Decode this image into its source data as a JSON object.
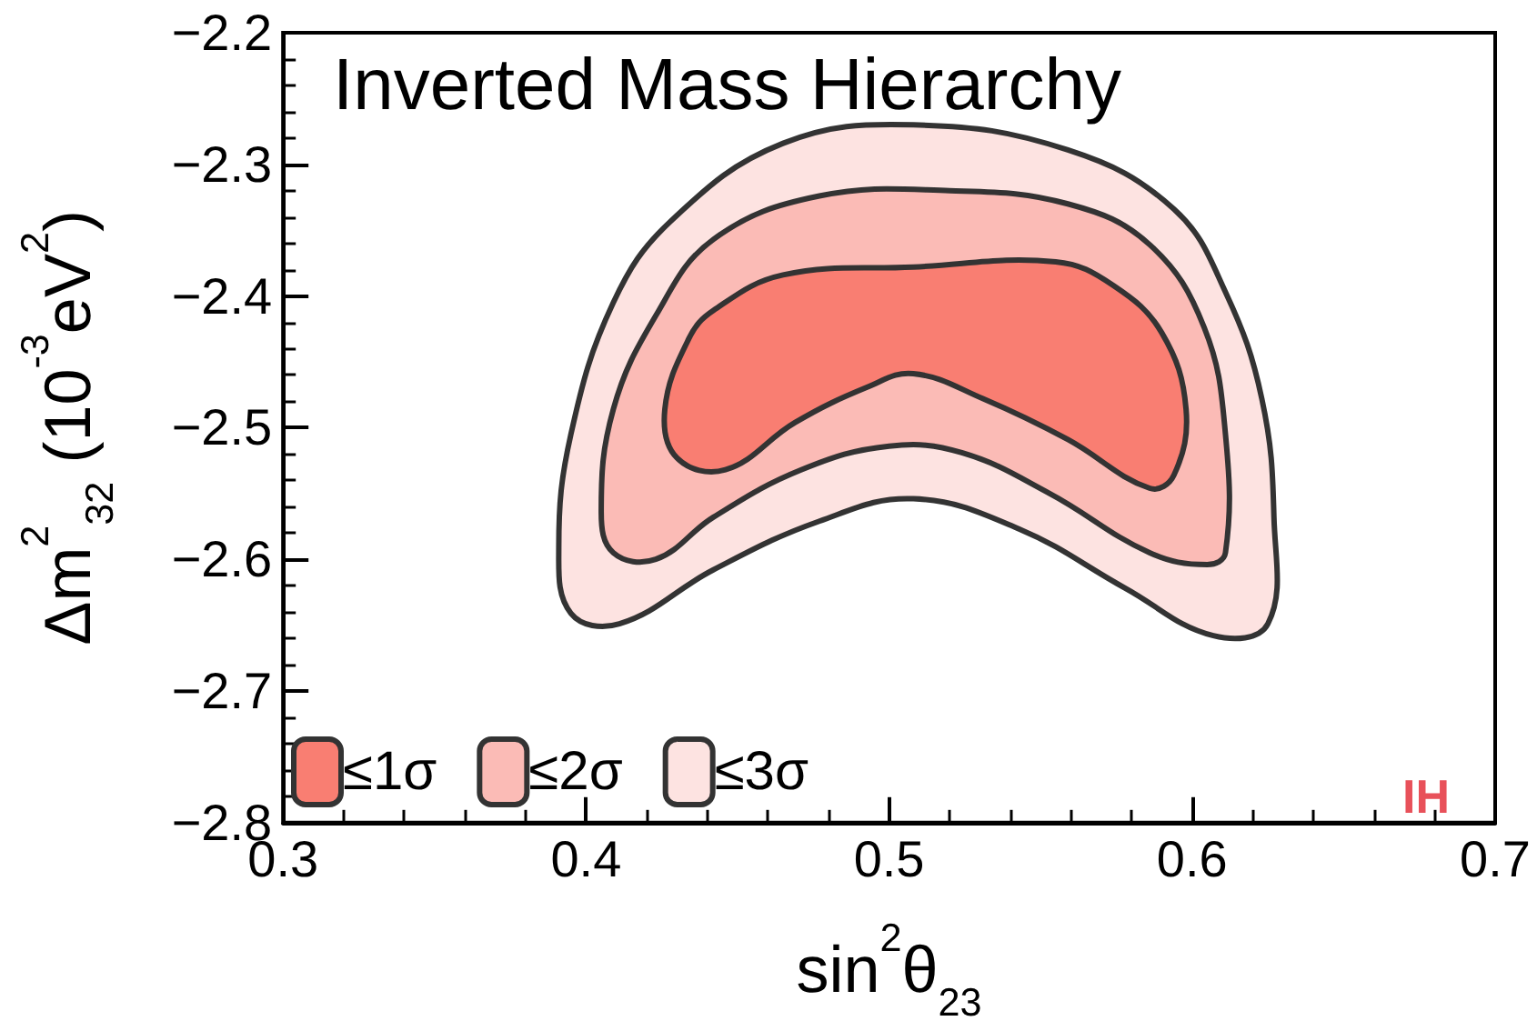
{
  "chart_data": {
    "type": "area",
    "title": "Inverted Mass Hierarchy",
    "xlabel": "sin$^{2}$θ$_{23}$",
    "ylabel": "Δm$^{2}$$_{32}$ (10$^{-3}$eV$^{2}$)",
    "xlim": [
      0.3,
      0.7
    ],
    "xticks": [
      0.3,
      0.4,
      0.5,
      0.6,
      0.7
    ],
    "ylim": [
      -2.8,
      -2.2
    ],
    "yticks": [
      -2.8,
      -2.7,
      -2.6,
      -2.5,
      -2.4,
      -2.3,
      -2.2
    ],
    "legend": "bottom left",
    "grid": false,
    "annotations": [
      "IH"
    ],
    "series": [
      {
        "name": "≤1σ",
        "color": "#f97e72",
        "x": [
          0.426,
          0.434,
          0.442,
          0.465,
          0.508,
          0.555,
          0.574,
          0.59,
          0.598,
          0.594,
          0.586,
          0.559,
          0.531,
          0.508,
          0.493,
          0.469,
          0.446,
          0.43
        ],
        "values": [
          -2.486,
          -2.432,
          -2.411,
          -2.384,
          -2.378,
          -2.374,
          -2.392,
          -2.428,
          -2.486,
          -2.536,
          -2.546,
          -2.509,
          -2.478,
          -2.459,
          -2.469,
          -2.496,
          -2.532,
          -2.523
        ]
      },
      {
        "name": "≤2σ",
        "color": "#fbbbb6",
        "x": [
          0.405,
          0.409,
          0.423,
          0.442,
          0.477,
          0.52,
          0.559,
          0.586,
          0.604,
          0.611,
          0.611,
          0.605,
          0.586,
          0.553,
          0.524,
          0.5,
          0.471,
          0.442,
          0.423,
          0.409
        ],
        "values": [
          -2.564,
          -2.486,
          -2.415,
          -2.357,
          -2.324,
          -2.32,
          -2.33,
          -2.361,
          -2.424,
          -2.505,
          -2.595,
          -2.604,
          -2.595,
          -2.55,
          -2.519,
          -2.514,
          -2.532,
          -2.568,
          -2.6,
          -2.595
        ]
      },
      {
        "name": "≤3σ",
        "color": "#fde3e1",
        "x": [
          0.391,
          0.395,
          0.409,
          0.428,
          0.465,
          0.508,
          0.559,
          0.594,
          0.611,
          0.623,
          0.627,
          0.625,
          0.607,
          0.578,
          0.543,
          0.508,
          0.477,
          0.442,
          0.411,
          0.395
        ],
        "values": [
          -2.591,
          -2.505,
          -2.405,
          -2.343,
          -2.284,
          -2.27,
          -2.289,
          -2.334,
          -2.397,
          -2.478,
          -2.568,
          -2.649,
          -2.658,
          -2.622,
          -2.577,
          -2.554,
          -2.571,
          -2.608,
          -2.649,
          -2.641
        ]
      }
    ]
  }
}
